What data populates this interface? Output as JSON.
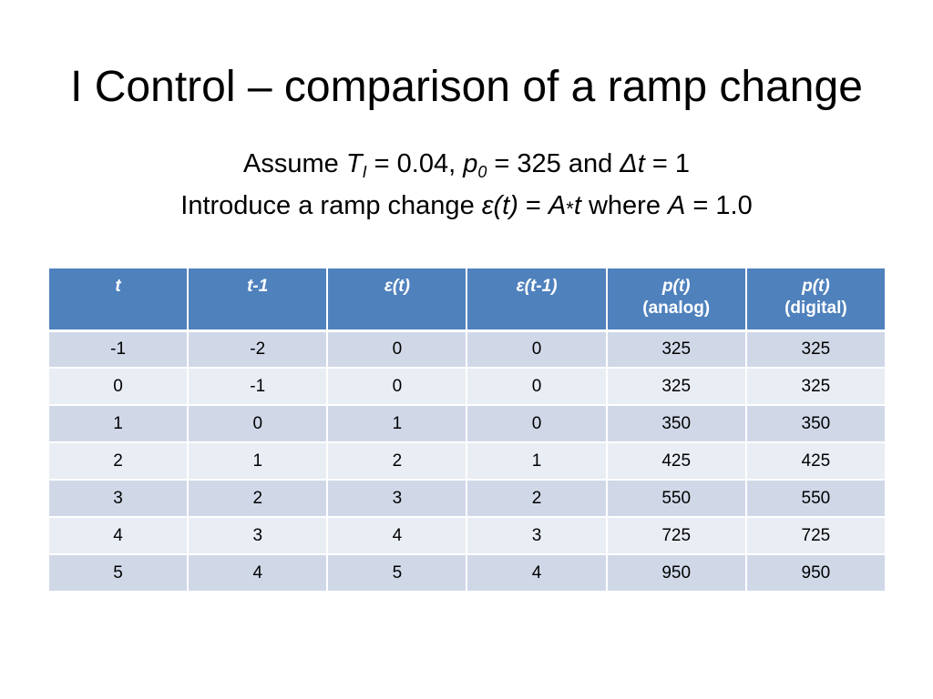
{
  "slide": {
    "title": "I Control – comparison of a ramp change",
    "assume": {
      "lead": "Assume ",
      "ti_sym": "T",
      "ti_sub": "I",
      "ti_val": " = 0.04, ",
      "p0_sym": "p",
      "p0_sub": "0",
      "p0_val": " = 325 and ",
      "dt_sym": "Δt",
      "dt_val": " = 1"
    },
    "ramp": {
      "lead": "Introduce a ramp change  ",
      "eps": "ε(t)",
      "eq": " = ",
      "a_sym": "A",
      "star": "*",
      "t_sym": "t",
      "where": " where ",
      "a_sym2": "A",
      "a_val": " = 1.0"
    }
  },
  "table": {
    "headers": [
      {
        "line1": "t",
        "line2": ""
      },
      {
        "line1": "t-1",
        "line2": ""
      },
      {
        "line1": "ε(t)",
        "line2": ""
      },
      {
        "line1": "ε(t-1)",
        "line2": ""
      },
      {
        "line1": "p(t)",
        "line2": "(analog)"
      },
      {
        "line1": "p(t)",
        "line2": "(digital)"
      }
    ],
    "rows": [
      [
        "-1",
        "-2",
        "0",
        "0",
        "325",
        "325"
      ],
      [
        "0",
        "-1",
        "0",
        "0",
        "325",
        "325"
      ],
      [
        "1",
        "0",
        "1",
        "0",
        "350",
        "350"
      ],
      [
        "2",
        "1",
        "2",
        "1",
        "425",
        "425"
      ],
      [
        "3",
        "2",
        "3",
        "2",
        "550",
        "550"
      ],
      [
        "4",
        "3",
        "4",
        "3",
        "725",
        "725"
      ],
      [
        "5",
        "4",
        "5",
        "4",
        "950",
        "950"
      ]
    ]
  }
}
